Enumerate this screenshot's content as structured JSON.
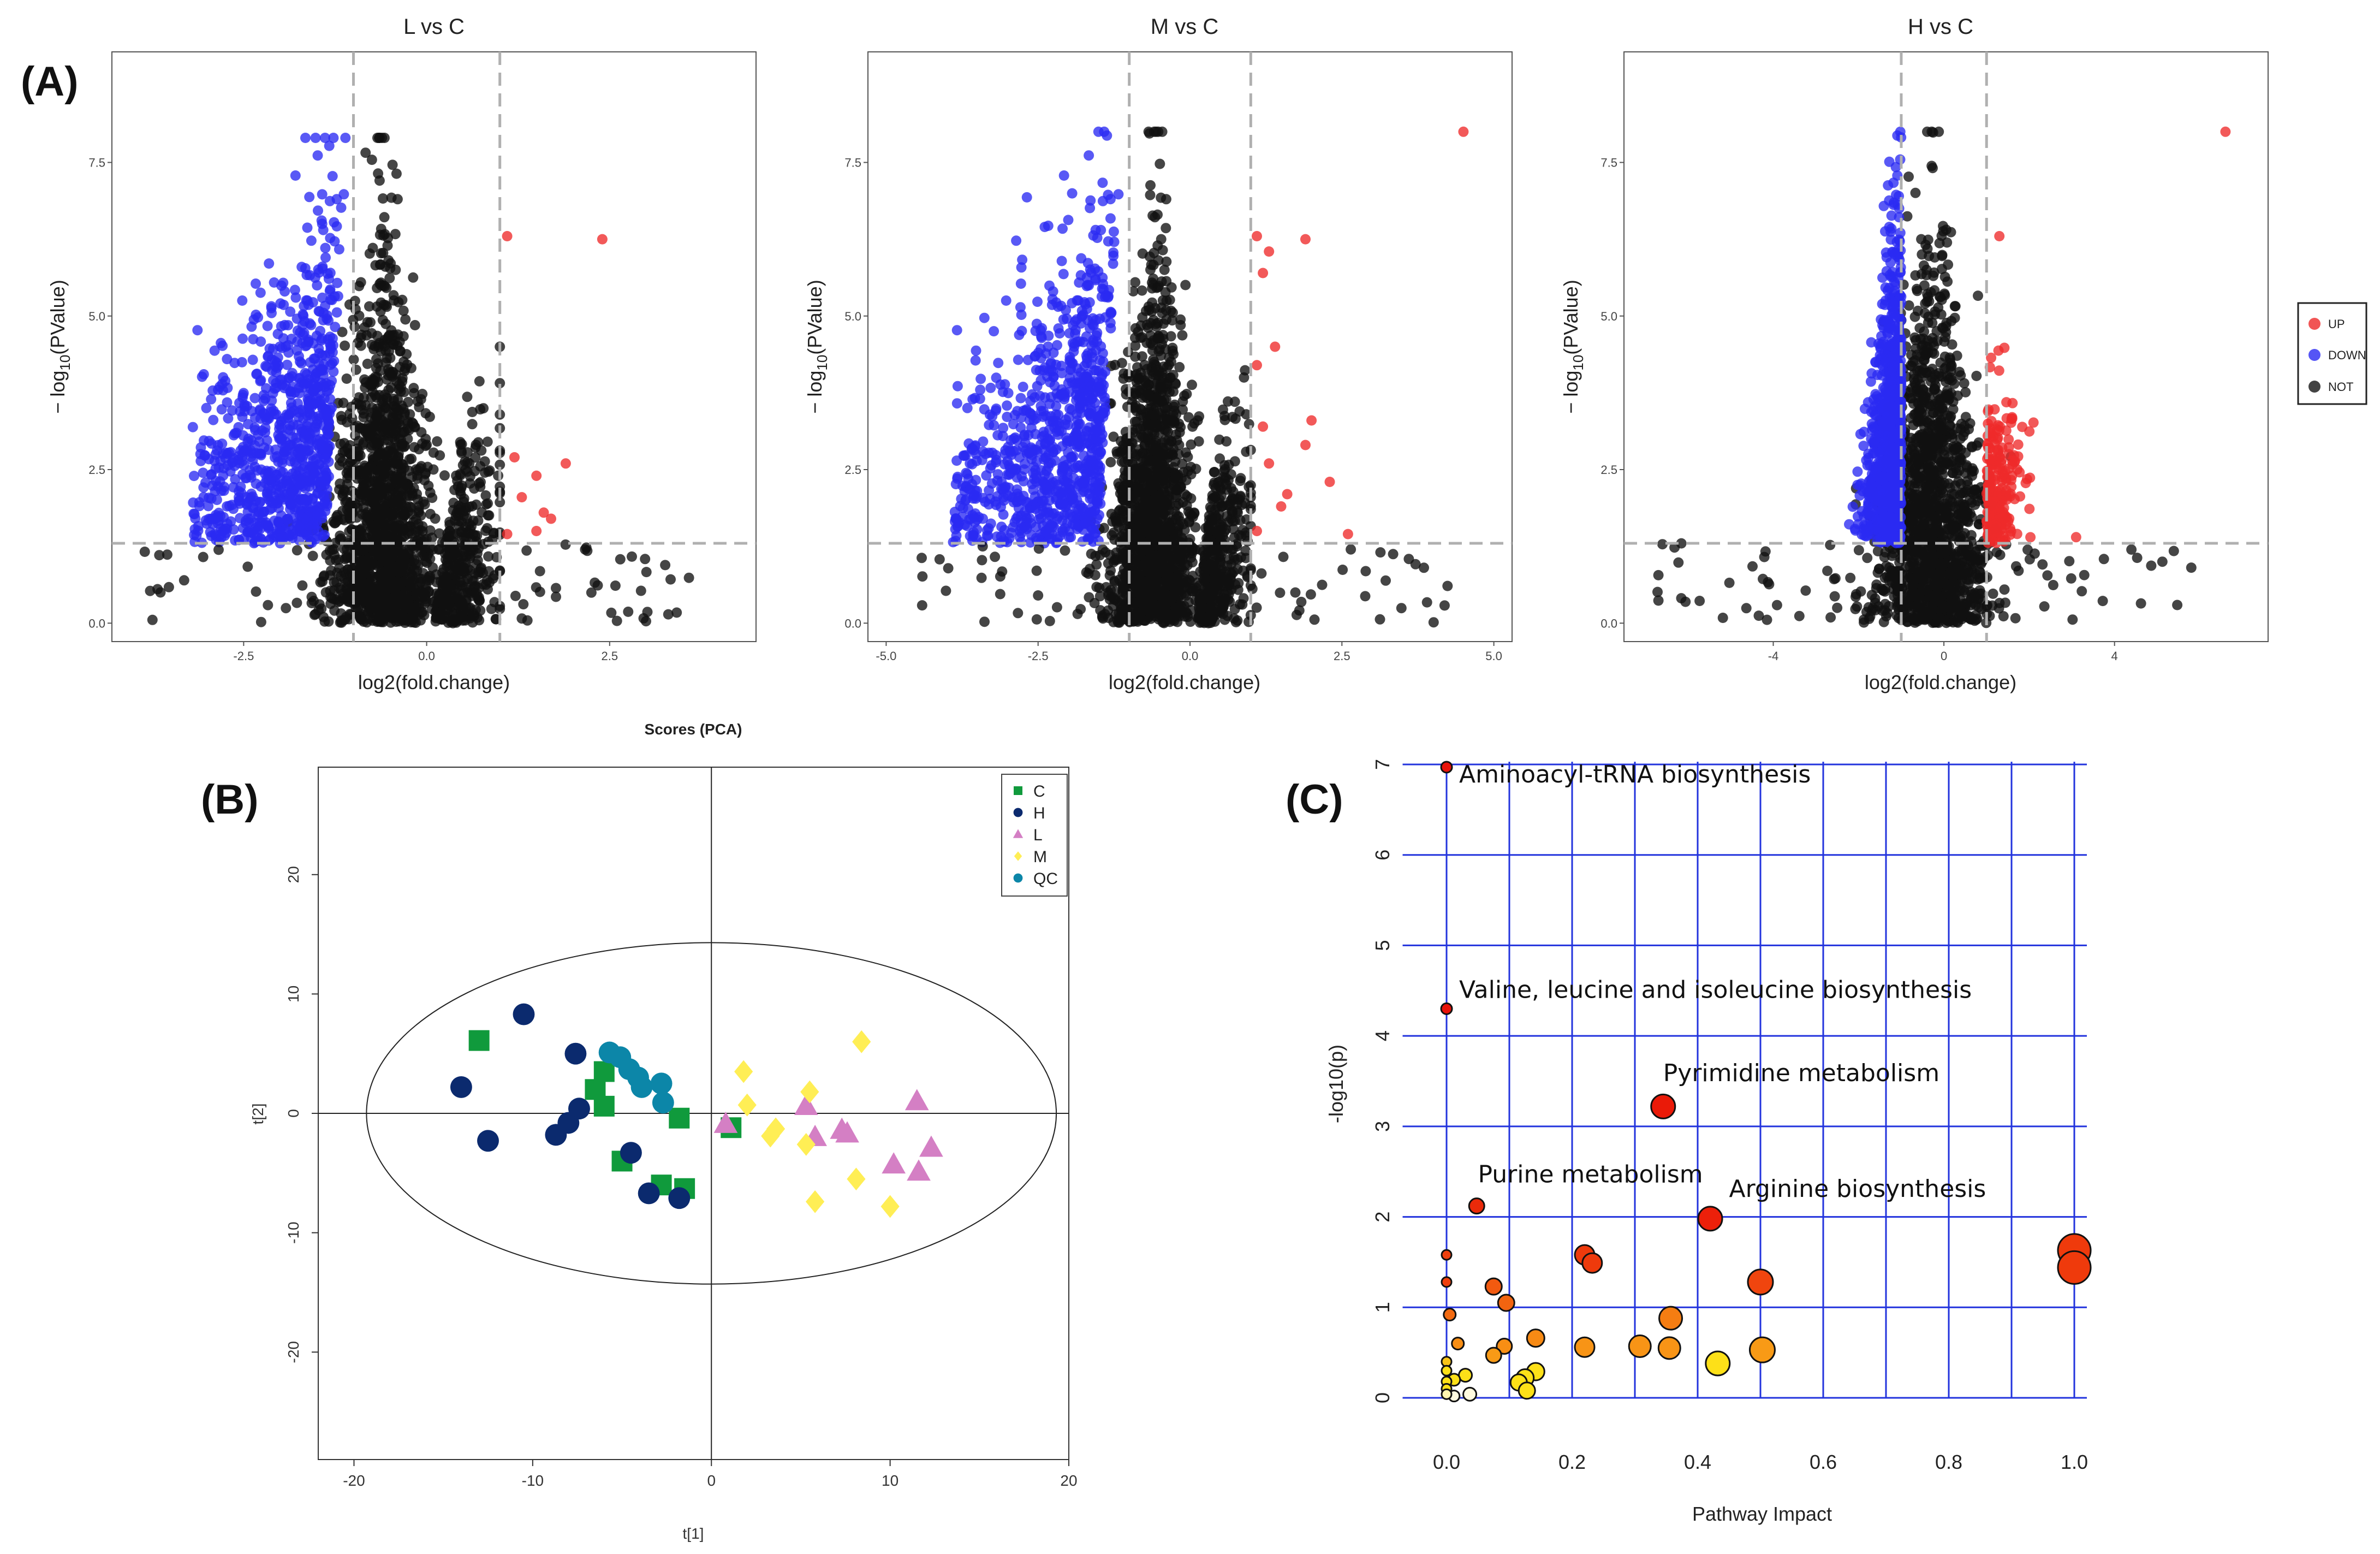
{
  "panel_labels": {
    "a": "(A)",
    "b": "(B)",
    "c": "(C)"
  },
  "colors": {
    "up": "#ee2a2a",
    "down": "#2a2af2",
    "not": "#111111",
    "grid_blue": "#2233dd",
    "dash": "#b0b0b0"
  },
  "volcano_legend": {
    "up": "UP",
    "down": "DOWN",
    "not": "NOT"
  },
  "chart_data": [
    {
      "type": "scatter",
      "subtype": "volcano",
      "title": "L vs C",
      "xlabel": "log2(fold.change)",
      "ylabel_main": "− log",
      "ylabel_sub": "10",
      "ylabel_tail": "(PValue)",
      "xlim": [
        -4.3,
        4.5
      ],
      "ylim": [
        -0.3,
        9.3
      ],
      "xticks": [
        -2.5,
        0,
        2.5
      ],
      "xtick_labels": [
        "-2.5",
        "0.0",
        "2.5"
      ],
      "yticks": [
        0,
        2.5,
        5,
        7.5
      ],
      "ytick_labels": [
        "0.0",
        "2.5",
        "5.0",
        "7.5"
      ],
      "fc_threshold": [
        -1,
        1
      ],
      "p_threshold": 1.3,
      "cloud": {
        "center": -0.6,
        "left_edge": -1.0,
        "right_edge": 0.1,
        "second_lobe": [
          0.0,
          0.9
        ],
        "peak": 7.9
      },
      "up_points": [
        [
          1.1,
          6.3
        ],
        [
          2.4,
          6.25
        ],
        [
          1.2,
          2.7
        ],
        [
          1.9,
          2.6
        ],
        [
          1.5,
          2.4
        ],
        [
          1.3,
          2.05
        ],
        [
          1.6,
          1.8
        ],
        [
          1.5,
          1.5
        ],
        [
          1.7,
          1.7
        ],
        [
          1.1,
          1.45
        ]
      ],
      "down_extent": -3.2
    },
    {
      "type": "scatter",
      "subtype": "volcano",
      "title": "M vs C",
      "xlabel": "log2(fold.change)",
      "ylabel_main": "− log",
      "ylabel_sub": "10",
      "ylabel_tail": "(PValue)",
      "xlim": [
        -5.3,
        5.3
      ],
      "ylim": [
        -0.3,
        9.3
      ],
      "xticks": [
        -5,
        -2.5,
        0,
        2.5,
        5
      ],
      "xtick_labels": [
        "-5.0",
        "-2.5",
        "0.0",
        "2.5",
        "5.0"
      ],
      "yticks": [
        0,
        2.5,
        5,
        7.5
      ],
      "ytick_labels": [
        "0.0",
        "2.5",
        "5.0",
        "7.5"
      ],
      "fc_threshold": [
        -1,
        1
      ],
      "p_threshold": 1.3,
      "cloud": {
        "center": -0.6,
        "left_edge": -1.0,
        "right_edge": 0.1,
        "second_lobe": [
          0.0,
          1.0
        ],
        "peak": 8.0
      },
      "up_points": [
        [
          4.5,
          8.0
        ],
        [
          1.1,
          6.3
        ],
        [
          1.3,
          6.05
        ],
        [
          1.9,
          6.25
        ],
        [
          1.2,
          5.7
        ],
        [
          1.1,
          4.2
        ],
        [
          1.4,
          4.5
        ],
        [
          1.2,
          3.2
        ],
        [
          2.0,
          3.3
        ],
        [
          1.9,
          2.9
        ],
        [
          1.3,
          2.6
        ],
        [
          1.6,
          2.1
        ],
        [
          2.3,
          2.3
        ],
        [
          1.5,
          1.9
        ],
        [
          2.6,
          1.45
        ],
        [
          1.1,
          1.5
        ]
      ],
      "down_extent": -3.9
    },
    {
      "type": "scatter",
      "subtype": "volcano",
      "title": "H vs C",
      "xlabel": "log2(fold.change)",
      "ylabel_main": "− log",
      "ylabel_sub": "10",
      "ylabel_tail": "(PValue)",
      "xlim": [
        -7.5,
        7.6
      ],
      "ylim": [
        -0.3,
        9.3
      ],
      "xticks": [
        -4,
        0,
        4
      ],
      "xtick_labels": [
        "-4",
        "0",
        "4"
      ],
      "yticks": [
        0,
        2.5,
        5,
        7.5
      ],
      "ytick_labels": [
        "0.0",
        "2.5",
        "5.0",
        "7.5"
      ],
      "fc_threshold": [
        -1,
        1
      ],
      "p_threshold": 1.3,
      "cloud": {
        "center": -0.3,
        "left_edge": -1.0,
        "right_edge": 1.0,
        "second_lobe": [
          0.0,
          0.0
        ],
        "peak": 8.0
      },
      "up_points": [
        [
          6.6,
          8.0
        ],
        [
          1.3,
          6.3
        ],
        [
          3.1,
          1.4
        ]
      ],
      "down_extent": -5.0
    },
    {
      "type": "scatter",
      "subtype": "pca",
      "title": "Scores (PCA)",
      "xlabel": "t[1]",
      "ylabel": "t[2]",
      "xlim": [
        -22,
        20
      ],
      "ylim": [
        -29,
        29
      ],
      "xticks": [
        -20,
        -10,
        0,
        10,
        20
      ],
      "xtick_labels": [
        "-20",
        "-10",
        "0",
        "10",
        "20"
      ],
      "yticks": [
        -20,
        -10,
        0,
        10,
        20
      ],
      "ytick_labels": [
        "-20",
        "-10",
        "0",
        "10",
        "20"
      ],
      "ellipse": {
        "cx": 0,
        "cy": 0,
        "rx": 19.3,
        "ry": 14.3
      },
      "series": [
        {
          "name": "C",
          "marker": "square",
          "color": "#109a3c",
          "points": [
            [
              -13,
              6.1
            ],
            [
              -6,
              3.5
            ],
            [
              -6.5,
              2
            ],
            [
              -6,
              0.6
            ],
            [
              -5,
              -4
            ],
            [
              -2.8,
              -6
            ],
            [
              -1.5,
              -6.3
            ],
            [
              -1.8,
              -0.4
            ],
            [
              1.1,
              -1.2
            ]
          ]
        },
        {
          "name": "H",
          "marker": "circle",
          "color": "#0b2a6e",
          "points": [
            [
              -14,
              2.2
            ],
            [
              -10.5,
              8.3
            ],
            [
              -7.6,
              5
            ],
            [
              -12.5,
              -2.3
            ],
            [
              -8.7,
              -1.8
            ],
            [
              -8,
              -0.8
            ],
            [
              -7.4,
              0.4
            ],
            [
              -4.5,
              -3.3
            ],
            [
              -3.5,
              -6.7
            ],
            [
              -1.8,
              -7.1
            ]
          ]
        },
        {
          "name": "L",
          "marker": "triangle",
          "color": "#d47fc4",
          "points": [
            [
              0.8,
              -0.9
            ],
            [
              5.3,
              0.6
            ],
            [
              5.8,
              -2
            ],
            [
              7.3,
              -1.4
            ],
            [
              7.6,
              -1.7
            ],
            [
              10.2,
              -4.3
            ],
            [
              11.5,
              1
            ],
            [
              11.6,
              -4.9
            ],
            [
              12.3,
              -2.9
            ]
          ]
        },
        {
          "name": "M",
          "marker": "diamond",
          "color": "#ffee55",
          "points": [
            [
              1.8,
              3.5
            ],
            [
              2,
              0.7
            ],
            [
              3.3,
              -1.9
            ],
            [
              3.6,
              -1.3
            ],
            [
              5.3,
              -2.6
            ],
            [
              5.5,
              1.8
            ],
            [
              5.8,
              -7.4
            ],
            [
              8.1,
              -5.5
            ],
            [
              8.4,
              6
            ],
            [
              10,
              -7.8
            ]
          ]
        },
        {
          "name": "QC",
          "marker": "circle",
          "color": "#0c86a8",
          "points": [
            [
              -5.7,
              5.1
            ],
            [
              -5.1,
              4.7
            ],
            [
              -4.6,
              3.7
            ],
            [
              -4.1,
              3
            ],
            [
              -3.9,
              2.2
            ],
            [
              -2.8,
              2.5
            ],
            [
              -2.7,
              0.9
            ]
          ]
        }
      ]
    },
    {
      "type": "scatter",
      "subtype": "pathway_bubble",
      "xlabel": "Pathway Impact",
      "ylabel": "-log10(p)",
      "xlim": [
        -0.02,
        1.02
      ],
      "ylim": [
        -0.1,
        7.1
      ],
      "xticks": [
        0,
        0.2,
        0.4,
        0.6,
        0.8,
        1.0
      ],
      "xtick_labels": [
        "0.0",
        "0.2",
        "0.4",
        "0.6",
        "0.8",
        "1.0"
      ],
      "yticks": [
        0,
        1,
        2,
        3,
        4,
        5,
        6,
        7
      ],
      "ytick_labels": [
        "0",
        "1",
        "2",
        "3",
        "4",
        "5",
        "6",
        "7"
      ],
      "annotations": [
        {
          "text": "Aminoacyl-tRNA biosynthesis",
          "x": 0.02,
          "y": 6.8
        },
        {
          "text": "Valine, leucine and isoleucine biosynthesis",
          "x": 0.02,
          "y": 4.42
        },
        {
          "text": "Pyrimidine metabolism",
          "x": 0.345,
          "y": 3.5
        },
        {
          "text": "Purine metabolism",
          "x": 0.05,
          "y": 2.38
        },
        {
          "text": "Arginine biosynthesis",
          "x": 0.45,
          "y": 2.22
        }
      ],
      "points": [
        {
          "x": 0.0,
          "y": 6.97,
          "size": 10,
          "color": "#e8120a"
        },
        {
          "x": 0.0,
          "y": 4.3,
          "size": 10,
          "color": "#e8120a"
        },
        {
          "x": 0.345,
          "y": 3.22,
          "size": 22,
          "color": "#ea1a08"
        },
        {
          "x": 0.048,
          "y": 2.12,
          "size": 14,
          "color": "#ea2a0a"
        },
        {
          "x": 0.42,
          "y": 1.98,
          "size": 22,
          "color": "#ec200a"
        },
        {
          "x": 0.22,
          "y": 1.58,
          "size": 18,
          "color": "#ee3a0c"
        },
        {
          "x": 0.232,
          "y": 1.49,
          "size": 18,
          "color": "#ee3a0c"
        },
        {
          "x": 1.0,
          "y": 1.63,
          "size": 30,
          "color": "#ef3a0c"
        },
        {
          "x": 1.0,
          "y": 1.44,
          "size": 30,
          "color": "#ef3a0c"
        },
        {
          "x": 0.5,
          "y": 1.28,
          "size": 23,
          "color": "#f0450e"
        },
        {
          "x": 0.0,
          "y": 1.58,
          "size": 9,
          "color": "#ef400e"
        },
        {
          "x": 0.0,
          "y": 1.28,
          "size": 9,
          "color": "#ef400e"
        },
        {
          "x": 0.075,
          "y": 1.23,
          "size": 15,
          "color": "#f25a10"
        },
        {
          "x": 0.095,
          "y": 1.05,
          "size": 15,
          "color": "#f26410"
        },
        {
          "x": 0.005,
          "y": 0.92,
          "size": 11,
          "color": "#f36a10"
        },
        {
          "x": 0.357,
          "y": 0.88,
          "size": 21,
          "color": "#f57d12"
        },
        {
          "x": 0.142,
          "y": 0.66,
          "size": 16,
          "color": "#f78a14"
        },
        {
          "x": 0.018,
          "y": 0.6,
          "size": 11,
          "color": "#f88e14"
        },
        {
          "x": 0.092,
          "y": 0.57,
          "size": 14,
          "color": "#f88e14"
        },
        {
          "x": 0.075,
          "y": 0.47,
          "size": 14,
          "color": "#f89a16"
        },
        {
          "x": 0.22,
          "y": 0.56,
          "size": 18,
          "color": "#f89416"
        },
        {
          "x": 0.308,
          "y": 0.57,
          "size": 20,
          "color": "#f89416"
        },
        {
          "x": 0.355,
          "y": 0.55,
          "size": 20,
          "color": "#f89416"
        },
        {
          "x": 0.503,
          "y": 0.53,
          "size": 23,
          "color": "#f89a16"
        },
        {
          "x": 0.432,
          "y": 0.38,
          "size": 22,
          "color": "#fde018"
        },
        {
          "x": 0.142,
          "y": 0.29,
          "size": 16,
          "color": "#fde018"
        },
        {
          "x": 0.125,
          "y": 0.22,
          "size": 16,
          "color": "#fde018"
        },
        {
          "x": 0.115,
          "y": 0.17,
          "size": 15,
          "color": "#fde018"
        },
        {
          "x": 0.128,
          "y": 0.08,
          "size": 15,
          "color": "#fde018"
        },
        {
          "x": 0.03,
          "y": 0.25,
          "size": 12,
          "color": "#fde018"
        },
        {
          "x": 0.012,
          "y": 0.2,
          "size": 11,
          "color": "#fde018"
        },
        {
          "x": 0.0,
          "y": 0.4,
          "size": 9,
          "color": "#f8c418"
        },
        {
          "x": 0.0,
          "y": 0.3,
          "size": 9,
          "color": "#fde018"
        },
        {
          "x": 0.0,
          "y": 0.18,
          "size": 9,
          "color": "#fde018"
        },
        {
          "x": 0.0,
          "y": 0.1,
          "size": 9,
          "color": "#fde018"
        },
        {
          "x": 0.0,
          "y": 0.04,
          "size": 9,
          "color": "#fff6b0"
        },
        {
          "x": 0.012,
          "y": 0.02,
          "size": 10,
          "color": "#fffbe0"
        },
        {
          "x": 0.037,
          "y": 0.04,
          "size": 12,
          "color": "#fffbe0"
        }
      ]
    }
  ]
}
